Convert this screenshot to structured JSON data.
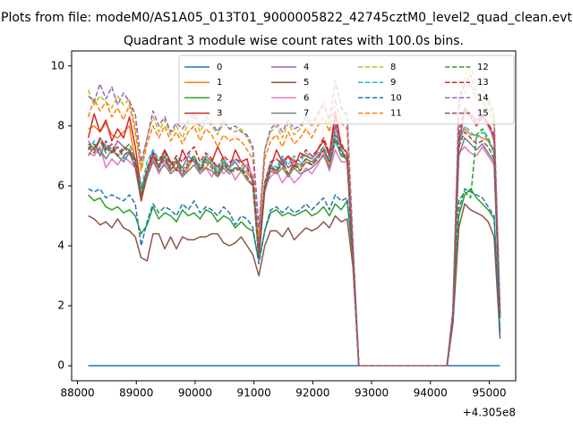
{
  "chart_data": {
    "type": "line",
    "suptitle": "Plots from file: modeM0/AS1A05_013T01_9000005822_42745cztM0_level2_quad_clean.evt",
    "title": "Quadrant 3 module wise count rates with 100.0s bins.",
    "xlabel": "",
    "ylabel": "",
    "x_offset_label": "+4.305e8",
    "xlim": [
      87900,
      95450
    ],
    "ylim": [
      -0.5,
      10.5
    ],
    "x_ticks": [
      88000,
      89000,
      90000,
      91000,
      92000,
      93000,
      94000,
      95000
    ],
    "y_ticks": [
      0,
      2,
      4,
      6,
      8,
      10
    ],
    "legend_location": "upper-center",
    "legend_columns": 4,
    "x": [
      88183,
      88283,
      88383,
      88483,
      88583,
      88683,
      88783,
      88883,
      88983,
      89083,
      89183,
      89283,
      89383,
      89483,
      89583,
      89683,
      89783,
      89883,
      89983,
      90083,
      90183,
      90283,
      90383,
      90483,
      90583,
      90683,
      90783,
      90883,
      90983,
      91083,
      91183,
      91283,
      91383,
      91483,
      91583,
      91683,
      91783,
      91883,
      91983,
      92083,
      92183,
      92283,
      92383,
      92483,
      92583,
      92683,
      92783,
      94283,
      94383,
      94483,
      94583,
      94683,
      94783,
      94883,
      94983,
      95083,
      95183
    ],
    "series": [
      {
        "name": "0",
        "color": "#1f77b4",
        "dash": "solid",
        "values": [
          0,
          0,
          0,
          0,
          0,
          0,
          0,
          0,
          0,
          0,
          0,
          0,
          0,
          0,
          0,
          0,
          0,
          0,
          0,
          0,
          0,
          0,
          0,
          0,
          0,
          0,
          0,
          0,
          0,
          0,
          0,
          0,
          0,
          0,
          0,
          0,
          0,
          0,
          0,
          0,
          0,
          0,
          0,
          0,
          0,
          0,
          0,
          0,
          0,
          0,
          0,
          0,
          0,
          0,
          0,
          0,
          0
        ]
      },
      {
        "name": "1",
        "color": "#ff7f0e",
        "dash": "solid",
        "values": [
          7.9,
          8.0,
          7.8,
          8.1,
          7.7,
          7.6,
          7.8,
          8.0,
          6.8,
          5.6,
          6.3,
          6.9,
          6.6,
          7.0,
          6.5,
          6.8,
          6.3,
          6.6,
          7.0,
          6.6,
          6.6,
          6.9,
          6.4,
          6.7,
          6.5,
          6.6,
          6.6,
          6.4,
          6.2,
          4.0,
          6.0,
          6.6,
          6.4,
          6.9,
          6.3,
          6.9,
          6.5,
          6.8,
          6.7,
          7.0,
          7.3,
          6.6,
          8.0,
          7.2,
          6.8,
          3.6,
          0,
          0,
          1.6,
          7.6,
          7.9,
          7.7,
          7.7,
          7.6,
          7.5,
          7.2,
          1.6
        ]
      },
      {
        "name": "2",
        "color": "#2ca02c",
        "dash": "solid",
        "values": [
          5.7,
          5.5,
          5.6,
          5.3,
          5.2,
          5.3,
          5.1,
          5.2,
          5.0,
          4.4,
          4.7,
          5.3,
          4.9,
          5.1,
          5.0,
          4.8,
          5.2,
          5.0,
          5.1,
          4.9,
          5.2,
          5.1,
          4.8,
          5.0,
          4.9,
          4.6,
          4.8,
          4.6,
          4.5,
          3.5,
          4.5,
          5.1,
          5.2,
          5.0,
          5.1,
          5.0,
          5.1,
          5.2,
          5.0,
          5.1,
          5.3,
          5.0,
          5.4,
          5.2,
          5.5,
          3.6,
          0,
          0,
          1.5,
          5.0,
          5.7,
          5.9,
          5.6,
          5.4,
          5.2,
          4.9,
          1.1
        ]
      },
      {
        "name": "3",
        "color": "#d62728",
        "dash": "solid",
        "values": [
          7.6,
          8.4,
          7.8,
          8.2,
          7.5,
          7.9,
          7.6,
          8.3,
          7.3,
          5.9,
          6.5,
          7.0,
          6.6,
          7.2,
          6.8,
          6.5,
          7.2,
          6.8,
          6.9,
          6.5,
          7.0,
          6.8,
          7.3,
          6.9,
          6.6,
          7.2,
          6.8,
          6.9,
          6.1,
          4.0,
          6.0,
          6.6,
          7.2,
          6.8,
          7.0,
          6.6,
          7.1,
          7.0,
          6.9,
          7.2,
          7.5,
          7.0,
          8.5,
          7.3,
          7.1,
          3.7,
          0,
          0,
          1.7,
          7.5,
          8.5,
          8.3,
          8.0,
          8.3,
          8.1,
          7.5,
          1.7
        ]
      },
      {
        "name": "4",
        "color": "#9467bd",
        "dash": "solid",
        "values": [
          7.5,
          7.2,
          7.6,
          7.3,
          7.1,
          7.5,
          7.3,
          7.2,
          6.9,
          5.7,
          6.5,
          7.2,
          6.6,
          7.0,
          6.5,
          6.9,
          6.6,
          7.0,
          6.8,
          6.5,
          6.9,
          6.7,
          6.4,
          6.8,
          6.6,
          6.8,
          6.5,
          6.7,
          6.3,
          3.9,
          6.0,
          6.7,
          6.5,
          6.9,
          6.6,
          6.8,
          6.7,
          6.9,
          6.8,
          7.0,
          7.2,
          6.8,
          8.1,
          7.2,
          6.9,
          3.7,
          0,
          0,
          1.7,
          7.2,
          8.6,
          8.4,
          8.2,
          8.3,
          8.0,
          7.6,
          1.7
        ]
      },
      {
        "name": "5",
        "color": "#8c564b",
        "dash": "solid",
        "values": [
          5.0,
          4.9,
          4.7,
          4.8,
          4.6,
          4.9,
          4.6,
          4.5,
          4.3,
          3.6,
          3.5,
          4.4,
          4.4,
          3.9,
          4.3,
          3.9,
          4.3,
          4.2,
          4.2,
          4.3,
          4.3,
          4.4,
          4.4,
          4.1,
          4.0,
          4.1,
          4.3,
          4.0,
          3.7,
          3.0,
          4.0,
          4.5,
          4.5,
          4.3,
          4.6,
          4.2,
          4.4,
          4.6,
          4.5,
          4.6,
          4.8,
          4.6,
          5.0,
          4.8,
          4.9,
          3.3,
          0,
          0,
          1.4,
          4.6,
          5.4,
          5.2,
          5.1,
          5.0,
          4.8,
          4.3,
          0.9
        ]
      },
      {
        "name": "6",
        "color": "#e377c2",
        "dash": "solid",
        "values": [
          7.1,
          7.0,
          7.3,
          6.6,
          6.9,
          6.7,
          7.0,
          6.8,
          6.6,
          5.5,
          6.5,
          6.9,
          6.4,
          6.8,
          6.5,
          6.9,
          6.3,
          6.7,
          6.9,
          6.5,
          6.6,
          6.3,
          6.7,
          6.4,
          6.6,
          6.2,
          6.5,
          6.7,
          6.3,
          3.5,
          6.0,
          6.3,
          6.5,
          6.1,
          6.4,
          6.1,
          6.3,
          6.6,
          6.4,
          6.7,
          7.1,
          6.5,
          7.2,
          6.8,
          6.8,
          3.5,
          0,
          0,
          1.6,
          7.1,
          7.3,
          7.1,
          7.0,
          7.3,
          7.0,
          6.7,
          1.6
        ]
      },
      {
        "name": "7",
        "color": "#7f7f7f",
        "dash": "solid",
        "values": [
          7.0,
          7.3,
          7.2,
          6.9,
          7.2,
          7.0,
          6.8,
          7.1,
          6.6,
          5.5,
          6.3,
          6.8,
          6.5,
          6.7,
          6.4,
          6.6,
          6.3,
          6.5,
          6.7,
          6.4,
          6.6,
          6.5,
          6.3,
          6.6,
          6.4,
          6.6,
          6.5,
          6.2,
          6.0,
          3.6,
          5.8,
          6.5,
          6.4,
          6.6,
          6.3,
          6.6,
          6.4,
          6.5,
          6.6,
          6.8,
          7.0,
          6.6,
          7.5,
          7.0,
          6.9,
          3.6,
          0,
          0,
          1.6,
          7.0,
          7.6,
          7.4,
          7.2,
          7.4,
          7.1,
          6.8,
          1.6
        ]
      },
      {
        "name": "8",
        "color": "#bcbd22",
        "dash": "dashed",
        "values": [
          9.2,
          8.7,
          9.0,
          8.8,
          8.6,
          9.0,
          8.7,
          8.9,
          8.0,
          6.6,
          7.6,
          8.3,
          7.8,
          8.2,
          7.7,
          8.0,
          7.6,
          8.1,
          8.3,
          7.8,
          8.2,
          8.0,
          7.7,
          8.1,
          7.9,
          7.8,
          7.9,
          7.6,
          7.2,
          4.4,
          7.2,
          7.8,
          8.0,
          7.6,
          8.1,
          7.7,
          7.9,
          8.2,
          8.0,
          8.3,
          8.7,
          8.1,
          9.5,
          8.6,
          8.3,
          4.2,
          0,
          0,
          1.9,
          8.9,
          9.6,
          10.0,
          9.4,
          9.2,
          9.0,
          8.4,
          1.9
        ]
      },
      {
        "name": "9",
        "color": "#17becf",
        "dash": "dashed",
        "values": [
          7.2,
          7.5,
          7.0,
          7.4,
          7.1,
          7.3,
          6.9,
          7.2,
          6.8,
          5.9,
          6.8,
          7.2,
          6.9,
          7.1,
          6.7,
          7.0,
          6.8,
          7.1,
          6.9,
          6.7,
          7.0,
          6.8,
          6.5,
          6.9,
          6.6,
          6.9,
          6.7,
          6.5,
          6.2,
          4.1,
          6.1,
          6.8,
          6.6,
          7.0,
          6.7,
          7.0,
          6.8,
          7.1,
          6.9,
          7.1,
          7.3,
          6.9,
          7.8,
          7.2,
          7.0,
          3.8,
          0,
          0,
          1.7,
          7.4,
          8.0,
          7.8,
          7.6,
          7.8,
          7.5,
          7.1,
          1.7
        ]
      },
      {
        "name": "10",
        "color": "#1f77b4",
        "dash": "dashed",
        "values": [
          5.9,
          5.8,
          5.9,
          5.6,
          5.7,
          5.6,
          5.5,
          5.7,
          5.4,
          4.0,
          4.8,
          5.4,
          5.1,
          5.3,
          5.2,
          5.0,
          5.4,
          5.2,
          5.5,
          5.1,
          5.3,
          5.2,
          5.0,
          5.3,
          5.1,
          4.7,
          5.0,
          4.9,
          4.6,
          3.4,
          4.5,
          5.2,
          5.3,
          5.1,
          5.3,
          5.1,
          5.2,
          5.4,
          5.2,
          5.4,
          5.6,
          5.2,
          5.7,
          5.5,
          5.6,
          3.7,
          0,
          0,
          1.5,
          5.2,
          5.9,
          5.8,
          5.7,
          5.6,
          5.3,
          5.0,
          1.1
        ]
      },
      {
        "name": "11",
        "color": "#ff7f0e",
        "dash": "dashed",
        "values": [
          8.3,
          8.9,
          8.5,
          8.8,
          8.3,
          8.6,
          8.2,
          8.7,
          7.8,
          6.5,
          7.4,
          8.0,
          7.6,
          8.0,
          7.5,
          7.8,
          7.4,
          7.8,
          8.0,
          7.5,
          7.9,
          7.7,
          7.3,
          7.7,
          7.5,
          7.6,
          7.5,
          7.2,
          6.9,
          4.3,
          6.9,
          7.5,
          7.7,
          7.3,
          7.8,
          7.4,
          7.6,
          7.9,
          7.6,
          8.0,
          8.3,
          7.8,
          8.9,
          8.1,
          7.9,
          4.0,
          0,
          0,
          1.8,
          8.6,
          9.1,
          9.4,
          8.9,
          8.8,
          8.5,
          8.0,
          1.8
        ]
      },
      {
        "name": "12",
        "color": "#2ca02c",
        "dash": "dashed",
        "values": [
          7.4,
          7.2,
          7.5,
          7.1,
          7.3,
          7.0,
          7.2,
          7.4,
          6.9,
          5.7,
          6.6,
          7.1,
          6.7,
          7.0,
          6.6,
          6.9,
          6.5,
          6.8,
          7.0,
          6.6,
          6.9,
          6.7,
          6.4,
          6.8,
          6.5,
          6.6,
          6.5,
          6.3,
          6.0,
          3.7,
          5.9,
          6.6,
          6.5,
          6.8,
          6.4,
          6.7,
          6.6,
          6.9,
          6.7,
          6.9,
          7.2,
          6.8,
          7.6,
          7.0,
          6.9,
          3.6,
          0,
          0,
          1.6,
          5.5,
          5.8,
          5.6,
          7.7,
          7.9,
          7.6,
          7.1,
          1.6
        ]
      },
      {
        "name": "13",
        "color": "#d62728",
        "dash": "dashed",
        "values": [
          7.3,
          7.1,
          7.6,
          7.2,
          7.4,
          7.0,
          7.3,
          7.1,
          6.9,
          5.5,
          6.5,
          7.1,
          6.8,
          7.2,
          6.7,
          7.0,
          6.8,
          7.1,
          7.3,
          6.8,
          7.1,
          6.9,
          6.6,
          7.0,
          6.8,
          6.9,
          6.8,
          6.6,
          6.2,
          3.8,
          6.1,
          6.8,
          6.9,
          6.7,
          7.0,
          6.8,
          6.9,
          7.2,
          7.0,
          7.2,
          7.6,
          7.1,
          8.3,
          7.4,
          7.1,
          3.7,
          0,
          0,
          1.7,
          7.8,
          8.6,
          8.4,
          8.1,
          8.4,
          8.1,
          7.7,
          1.7
        ]
      },
      {
        "name": "14",
        "color": "#9467bd",
        "dash": "dashed",
        "values": [
          9.0,
          8.8,
          9.4,
          8.9,
          9.3,
          8.7,
          9.1,
          8.8,
          8.4,
          6.8,
          7.6,
          8.5,
          8.0,
          8.3,
          7.8,
          8.1,
          7.9,
          8.2,
          8.4,
          8.0,
          8.3,
          8.1,
          7.8,
          8.2,
          7.9,
          8.0,
          7.8,
          7.7,
          7.3,
          4.6,
          7.2,
          7.9,
          8.1,
          7.8,
          8.2,
          7.9,
          8.0,
          8.3,
          8.1,
          8.4,
          8.8,
          8.2,
          9.5,
          8.6,
          8.4,
          4.1,
          0,
          0,
          1.9,
          8.8,
          9.4,
          9.7,
          9.1,
          9.0,
          8.8,
          8.2,
          1.8
        ]
      },
      {
        "name": "15",
        "color": "#8c564b",
        "dash": "dashed",
        "values": [
          7.2,
          7.4,
          7.0,
          7.5,
          7.1,
          7.3,
          7.0,
          7.2,
          6.7,
          5.6,
          6.4,
          7.0,
          6.6,
          6.9,
          6.5,
          6.8,
          6.4,
          6.7,
          6.9,
          6.5,
          6.8,
          6.6,
          6.3,
          6.7,
          6.5,
          6.5,
          6.6,
          6.3,
          6.0,
          3.6,
          5.9,
          6.6,
          6.5,
          6.7,
          6.4,
          6.7,
          6.5,
          6.8,
          6.7,
          6.9,
          7.2,
          6.8,
          7.7,
          7.1,
          6.9,
          3.6,
          0,
          0,
          1.6,
          7.3,
          7.8,
          7.6,
          7.4,
          7.5,
          7.3,
          6.9,
          1.6
        ]
      }
    ]
  }
}
